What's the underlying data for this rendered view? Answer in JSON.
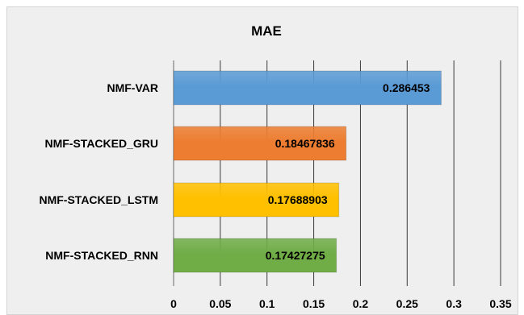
{
  "chart_data": {
    "type": "bar",
    "orientation": "horizontal",
    "title": "MAE",
    "xlabel": "",
    "ylabel": "",
    "categories": [
      "NMF-VAR",
      "NMF-STACKED_GRU",
      "NMF-STACKED_LSTM",
      "NMF-STACKED_RNN"
    ],
    "values": [
      0.286453,
      0.18467836,
      0.17688903,
      0.17427275
    ],
    "value_labels": [
      "0.286453",
      "0.18467836",
      "0.17688903",
      "0.17427275"
    ],
    "bar_colors": [
      "#5b9bd5",
      "#ed7d31",
      "#ffc000",
      "#70ad47"
    ],
    "xlim": [
      0,
      0.35
    ],
    "xticks": [
      "0",
      "0.05",
      "0.1",
      "0.15",
      "0.2",
      "0.25",
      "0.3",
      "0.35"
    ],
    "grid": "vertical",
    "legend": "none"
  }
}
